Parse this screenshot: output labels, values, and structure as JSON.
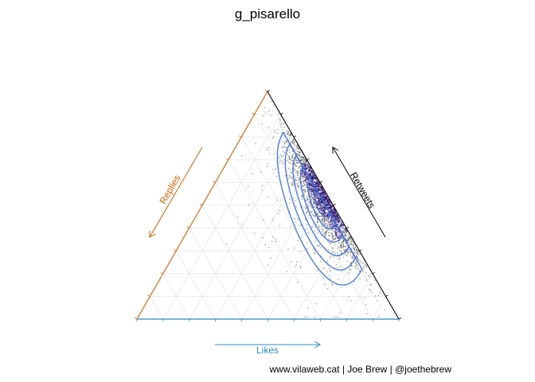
{
  "chart_data": {
    "type": "ternary-scatter-density",
    "title": "g_pisarello",
    "axes": {
      "likes": {
        "label": "Likes",
        "color": "#2b8cc4",
        "range": [
          0,
          1
        ]
      },
      "retweets": {
        "label": "Retweets",
        "color": "#000000",
        "range": [
          0,
          1
        ]
      },
      "replies": {
        "label": "Replies",
        "color": "#d95f02",
        "range": [
          0,
          1
        ]
      }
    },
    "grid": true,
    "grid_breaks": [
      0.1,
      0.2,
      0.3,
      0.4,
      0.5,
      0.6,
      0.7,
      0.8,
      0.9
    ],
    "point_color": "#1a0066",
    "contour_color": "#3a6fe0",
    "density_center": {
      "likes": 0.45,
      "retweets": 0.52,
      "replies": 0.03
    },
    "density_spread": {
      "along_edge": 0.13,
      "inward": 0.045
    },
    "contour_levels": [
      {
        "level": 1,
        "along_edge": 0.3,
        "inward": 0.17
      },
      {
        "level": 2,
        "along_edge": 0.25,
        "inward": 0.135
      },
      {
        "level": 3,
        "along_edge": 0.2,
        "inward": 0.105
      },
      {
        "level": 4,
        "along_edge": 0.15,
        "inward": 0.08
      },
      {
        "level": 5,
        "along_edge": 0.1,
        "inward": 0.055
      },
      {
        "level": 6,
        "along_edge": 0.055,
        "inward": 0.035
      }
    ],
    "n_points": 2200
  },
  "caption": "www.vilaweb.cat | Joe Brew | @joethebrew"
}
